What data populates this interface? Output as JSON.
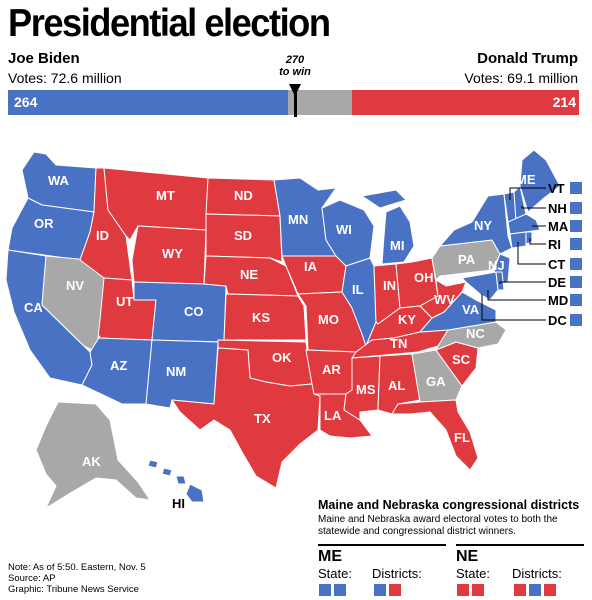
{
  "title": "Presidential election",
  "biden": {
    "name": "Joe Biden",
    "votes": "Votes: 72.6 million",
    "ev": "264",
    "color": "#4a72c4"
  },
  "trump": {
    "name": "Donald Trump",
    "votes": "Votes: 69.1 million",
    "ev": "214",
    "color": "#df3a3f"
  },
  "undecided_color": "#a8a8a8",
  "threshold": "270\nto win",
  "electoral_bar": {
    "biden": 264,
    "trump": 214,
    "total": 538,
    "threshold": 270
  },
  "states": [
    {
      "abbr": "WA",
      "winner": "biden"
    },
    {
      "abbr": "OR",
      "winner": "biden"
    },
    {
      "abbr": "CA",
      "winner": "biden"
    },
    {
      "abbr": "NV",
      "winner": "undecided"
    },
    {
      "abbr": "ID",
      "winner": "trump"
    },
    {
      "abbr": "MT",
      "winner": "trump"
    },
    {
      "abbr": "WY",
      "winner": "trump"
    },
    {
      "abbr": "UT",
      "winner": "trump"
    },
    {
      "abbr": "AZ",
      "winner": "biden"
    },
    {
      "abbr": "CO",
      "winner": "biden"
    },
    {
      "abbr": "NM",
      "winner": "biden"
    },
    {
      "abbr": "ND",
      "winner": "trump"
    },
    {
      "abbr": "SD",
      "winner": "trump"
    },
    {
      "abbr": "NE",
      "winner": "trump"
    },
    {
      "abbr": "KS",
      "winner": "trump"
    },
    {
      "abbr": "OK",
      "winner": "trump"
    },
    {
      "abbr": "TX",
      "winner": "trump"
    },
    {
      "abbr": "MN",
      "winner": "biden"
    },
    {
      "abbr": "IA",
      "winner": "trump"
    },
    {
      "abbr": "MO",
      "winner": "trump"
    },
    {
      "abbr": "AR",
      "winner": "trump"
    },
    {
      "abbr": "LA",
      "winner": "trump"
    },
    {
      "abbr": "WI",
      "winner": "biden"
    },
    {
      "abbr": "IL",
      "winner": "biden"
    },
    {
      "abbr": "MI",
      "winner": "biden"
    },
    {
      "abbr": "IN",
      "winner": "trump"
    },
    {
      "abbr": "OH",
      "winner": "trump"
    },
    {
      "abbr": "KY",
      "winner": "trump"
    },
    {
      "abbr": "TN",
      "winner": "trump"
    },
    {
      "abbr": "MS",
      "winner": "trump"
    },
    {
      "abbr": "AL",
      "winner": "trump"
    },
    {
      "abbr": "GA",
      "winner": "undecided"
    },
    {
      "abbr": "FL",
      "winner": "trump"
    },
    {
      "abbr": "SC",
      "winner": "trump"
    },
    {
      "abbr": "NC",
      "winner": "undecided"
    },
    {
      "abbr": "VA",
      "winner": "biden"
    },
    {
      "abbr": "WV",
      "winner": "trump"
    },
    {
      "abbr": "PA",
      "winner": "undecided"
    },
    {
      "abbr": "NY",
      "winner": "biden"
    },
    {
      "abbr": "NJ",
      "winner": "biden"
    },
    {
      "abbr": "ME",
      "winner": "biden"
    },
    {
      "abbr": "AK",
      "winner": "undecided"
    },
    {
      "abbr": "HI",
      "winner": "biden"
    }
  ],
  "small_states": [
    {
      "abbr": "VT",
      "winner": "biden"
    },
    {
      "abbr": "NH",
      "winner": "biden"
    },
    {
      "abbr": "MA",
      "winner": "biden"
    },
    {
      "abbr": "RI",
      "winner": "biden"
    },
    {
      "abbr": "CT",
      "winner": "biden"
    },
    {
      "abbr": "DE",
      "winner": "biden"
    },
    {
      "abbr": "MD",
      "winner": "biden"
    },
    {
      "abbr": "DC",
      "winner": "biden"
    }
  ],
  "districts": {
    "title": "Maine and Nebraska congressional districts",
    "description": "Maine and Nebraska award electoral votes to both the statewide and congressional district winners.",
    "state_label": "State:",
    "districts_label": "Districts:",
    "me": {
      "name": "ME",
      "state": [
        "biden",
        "biden"
      ],
      "districts": [
        "biden",
        "trump"
      ]
    },
    "ne": {
      "name": "NE",
      "state": [
        "trump",
        "trump"
      ],
      "districts": [
        "trump",
        "biden",
        "trump"
      ]
    }
  },
  "note": "Note: As of 5:50. Eastern, Nov. 5",
  "source": "Source: AP",
  "graphic": "Graphic: Tribune News Service"
}
